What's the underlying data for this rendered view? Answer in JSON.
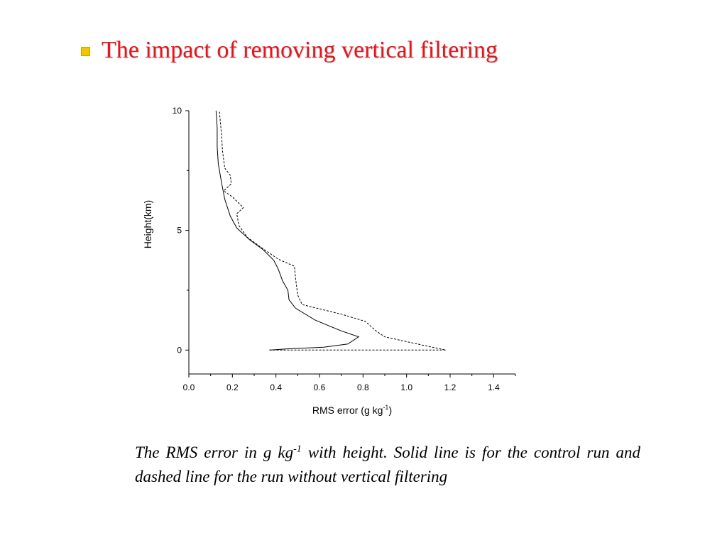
{
  "slide": {
    "title": "The impact of removing vertical filtering",
    "caption": {
      "pre": "The RMS error in g kg",
      "sup": "-1",
      "post": " with height.  Solid line is for the control run and dashed line for the run without vertical filtering"
    },
    "colors": {
      "title": "#e8141b",
      "bullet": "#f2c500"
    }
  },
  "chart_data": {
    "type": "line",
    "xlabel_parts": {
      "pre": "RMS error (g kg",
      "sup": "-1",
      "post": ")"
    },
    "ylabel": "Height(km)",
    "xlim": [
      0.0,
      1.5
    ],
    "ylim": [
      -1.0,
      10.0
    ],
    "xticks": [
      "0.0",
      "0.2",
      "0.4",
      "0.6",
      "0.8",
      "1.0",
      "1.2",
      "1.4"
    ],
    "yticks": [
      "0",
      "5",
      "10"
    ],
    "grid": false,
    "series": [
      {
        "style": "solid",
        "points": [
          [
            0.37,
            0.0
          ],
          [
            0.45,
            0.05
          ],
          [
            0.62,
            0.12
          ],
          [
            0.73,
            0.25
          ],
          [
            0.78,
            0.55
          ],
          [
            0.7,
            0.8
          ],
          [
            0.58,
            1.25
          ],
          [
            0.49,
            1.75
          ],
          [
            0.46,
            2.1
          ],
          [
            0.455,
            2.5
          ],
          [
            0.43,
            2.9
          ],
          [
            0.41,
            3.4
          ],
          [
            0.39,
            3.75
          ],
          [
            0.34,
            4.2
          ],
          [
            0.28,
            4.6
          ],
          [
            0.22,
            5.1
          ],
          [
            0.19,
            5.6
          ],
          [
            0.165,
            6.3
          ],
          [
            0.15,
            7.0
          ],
          [
            0.135,
            7.8
          ],
          [
            0.13,
            8.5
          ],
          [
            0.13,
            9.3
          ],
          [
            0.125,
            10.0
          ]
        ]
      },
      {
        "style": "dashed",
        "points": [
          [
            0.37,
            0.0
          ],
          [
            1.18,
            0.0
          ],
          [
            1.05,
            0.25
          ],
          [
            0.9,
            0.55
          ],
          [
            0.86,
            0.8
          ],
          [
            0.81,
            1.2
          ],
          [
            0.7,
            1.5
          ],
          [
            0.52,
            1.9
          ],
          [
            0.5,
            2.3
          ],
          [
            0.49,
            3.0
          ],
          [
            0.485,
            3.5
          ],
          [
            0.41,
            3.8
          ],
          [
            0.33,
            4.3
          ],
          [
            0.27,
            4.7
          ],
          [
            0.23,
            5.2
          ],
          [
            0.22,
            5.7
          ],
          [
            0.25,
            5.95
          ],
          [
            0.2,
            6.4
          ],
          [
            0.16,
            6.65
          ],
          [
            0.195,
            6.95
          ],
          [
            0.19,
            7.3
          ],
          [
            0.165,
            7.6
          ],
          [
            0.155,
            8.3
          ],
          [
            0.15,
            9.0
          ],
          [
            0.14,
            10.0
          ]
        ]
      }
    ]
  }
}
